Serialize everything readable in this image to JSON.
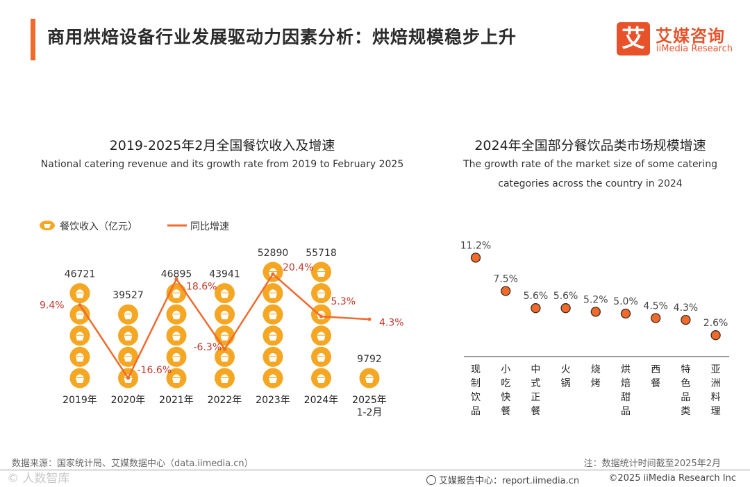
{
  "header": {
    "title": "商用烘焙设备行业发展驱动力因素分析：烘焙规模稳步上升",
    "logo_mark": "艾",
    "logo_cn": "艾媒咨询",
    "logo_en": "iiMedia Research"
  },
  "chart_data": [
    {
      "type": "bar",
      "title": "2019-2025年2月全国餐饮收入及增速",
      "subtitle": "National catering revenue and its growth rate from 2019 to February 2025",
      "legend": {
        "bar": "餐饮收入（亿元）",
        "line": "同比增速"
      },
      "categories": [
        "2019年",
        "2020年",
        "2021年",
        "2022年",
        "2023年",
        "2024年",
        "2025年|1-2月"
      ],
      "series": [
        {
          "name": "餐饮收入（亿元）",
          "type": "pictorial-bar",
          "values": [
            46721,
            39527,
            46895,
            43941,
            52890,
            55718,
            9792
          ],
          "labels": [
            "46721",
            "39527",
            "46895",
            "43941",
            "52890",
            "55718",
            "9792"
          ]
        },
        {
          "name": "同比增速",
          "type": "line",
          "values": [
            9.4,
            -16.6,
            18.6,
            -6.3,
            20.4,
            5.3,
            4.3
          ],
          "labels": [
            "9.4%",
            "-16.6%",
            "18.6%",
            "-6.3%",
            "20.4%",
            "5.3%",
            "4.3%"
          ]
        }
      ],
      "ylim": [
        0,
        56000
      ],
      "colors": {
        "bar": "#f5a623",
        "line": "#f06a2c",
        "line_label": "#c0392b"
      }
    },
    {
      "type": "scatter",
      "title": "2024年全国部分餐饮品类市场规模增速",
      "subtitle_lines": [
        "The growth rate of the market size of some catering",
        "categories across the country in 2024"
      ],
      "categories": [
        "现制饮品",
        "小吃快餐",
        "中式正餐",
        "火锅",
        "烧烤",
        "烘焙甜品",
        "西餐",
        "特色品类",
        "亚洲料理"
      ],
      "values": [
        11.2,
        7.5,
        5.6,
        5.6,
        5.2,
        5.0,
        4.5,
        4.3,
        2.6
      ],
      "labels": [
        "11.2%",
        "7.5%",
        "5.6%",
        "5.6%",
        "5.2%",
        "5.0%",
        "4.5%",
        "4.3%",
        "2.6%"
      ],
      "ylim": [
        0,
        12
      ],
      "colors": {
        "marker_fill": "#f06a2c",
        "marker_stroke": "#3a2a20"
      }
    }
  ],
  "footer": {
    "source": "数据来源：国家统计局、艾媒数据中心（data.iimedia.cn）",
    "note": "注：数据统计时间截至2025年2月",
    "watermark": "© 人数智库",
    "site": "艾媒报告中心：report.iimedia.cn",
    "copyright": "©2025  iiMedia Research  Inc"
  }
}
